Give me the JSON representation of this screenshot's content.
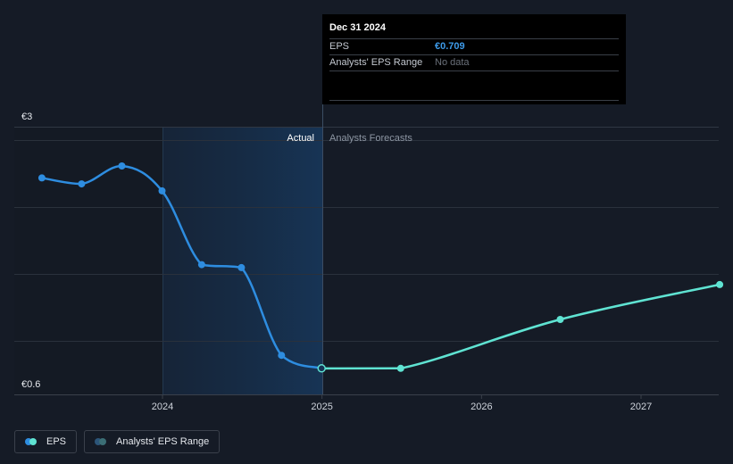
{
  "chart_data": {
    "type": "line",
    "y_top_label": "€3",
    "y_bottom_label": "€0.6",
    "ylim": [
      0.6,
      3
    ],
    "x_ticks": [
      "2024",
      "2025",
      "2026",
      "2027"
    ],
    "region_labels": {
      "actual": "Actual",
      "forecast": "Analysts Forecasts"
    },
    "series": [
      {
        "name": "EPS",
        "role": "actual",
        "color": "#2e8de0",
        "points": [
          {
            "x": "2023-03-31",
            "y": 2.62
          },
          {
            "x": "2023-06-30",
            "y": 2.56
          },
          {
            "x": "2023-09-30",
            "y": 2.74
          },
          {
            "x": "2023-12-31",
            "y": 2.49
          },
          {
            "x": "2024-03-31",
            "y": 1.75
          },
          {
            "x": "2024-06-30",
            "y": 1.72
          },
          {
            "x": "2024-09-30",
            "y": 0.84
          },
          {
            "x": "2024-12-31",
            "y": 0.709
          }
        ]
      },
      {
        "name": "EPS",
        "role": "forecast",
        "color": "#5fe3d2",
        "points": [
          {
            "x": "2024-12-31",
            "y": 0.709
          },
          {
            "x": "2025-06-30",
            "y": 0.709
          },
          {
            "x": "2026-06-30",
            "y": 1.2
          },
          {
            "x": "2027-06-30",
            "y": 1.55
          }
        ]
      }
    ]
  },
  "tooltip": {
    "date": "Dec 31 2024",
    "eps_label": "EPS",
    "eps_value": "€0.709",
    "range_label": "Analysts' EPS Range",
    "range_value": "No data"
  },
  "legend": {
    "eps_label": "EPS",
    "range_label": "Analysts' EPS Range"
  }
}
